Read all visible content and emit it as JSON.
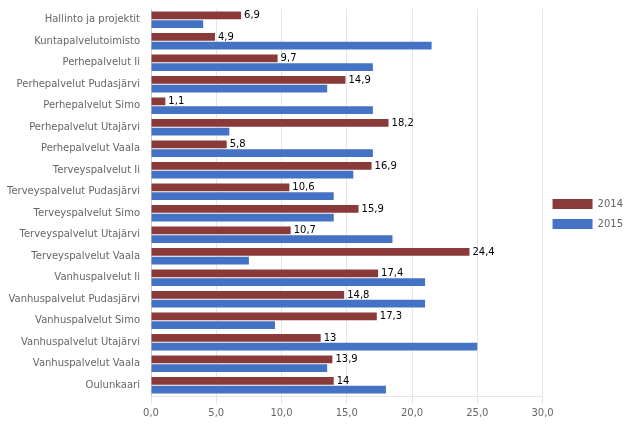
{
  "chart_data": {
    "type": "bar",
    "orientation": "horizontal",
    "categories": [
      "Hallinto ja projektit",
      "Kuntapalvelutoimisto",
      "Perhepalvelut Ii",
      "Perhepalvelut Pudasjärvi",
      "Perhepalvelut Simo",
      "Perhepalvelut Utajärvi",
      "Perhepalvelut Vaala",
      "Terveyspalvelut Ii",
      "Terveyspalvelut Pudasjärvi",
      "Terveyspalvelut Simo",
      "Terveyspalvelut Utajärvi",
      "Terveyspalvelut Vaala",
      "Vanhuspalvelut Ii",
      "Vanhuspalvelut Pudasjärvi",
      "Vanhuspalvelut Simo",
      "Vanhuspalvelut Utajärvi",
      "Vanhuspalvelut Vaala",
      "Oulunkaari"
    ],
    "series": [
      {
        "name": "2014",
        "color": "#8B3A3A",
        "data_labels": true,
        "values": [
          6.9,
          4.9,
          9.7,
          14.9,
          1.1,
          18.2,
          5.8,
          16.9,
          10.6,
          15.9,
          10.7,
          24.4,
          17.4,
          14.8,
          17.3,
          13.0,
          13.9,
          14.0
        ],
        "value_labels": [
          "6,9",
          "4,9",
          "9,7",
          "14,9",
          "1,1",
          "18,2",
          "5,8",
          "16,9",
          "10,6",
          "15,9",
          "10,7",
          "24,4",
          "17,4",
          "14,8",
          "17,3",
          "13",
          "13,9",
          "14"
        ]
      },
      {
        "name": "2015",
        "color": "#4472C4",
        "values": [
          4.0,
          21.5,
          17.0,
          13.5,
          17.0,
          6.0,
          17.0,
          15.5,
          14.0,
          14.0,
          18.5,
          7.5,
          21.0,
          21.0,
          9.5,
          25.0,
          13.5,
          18.0
        ]
      }
    ],
    "xlim": [
      0,
      30
    ],
    "xticks": [
      {
        "value": 0,
        "label": "0,0"
      },
      {
        "value": 5,
        "label": "5,0"
      },
      {
        "value": 10,
        "label": "10,0"
      },
      {
        "value": 15,
        "label": "15,0"
      },
      {
        "value": 20,
        "label": "20,0"
      },
      {
        "value": 25,
        "label": "25,0"
      },
      {
        "value": 30,
        "label": "30,0"
      }
    ],
    "grid": true,
    "legend": "right"
  }
}
